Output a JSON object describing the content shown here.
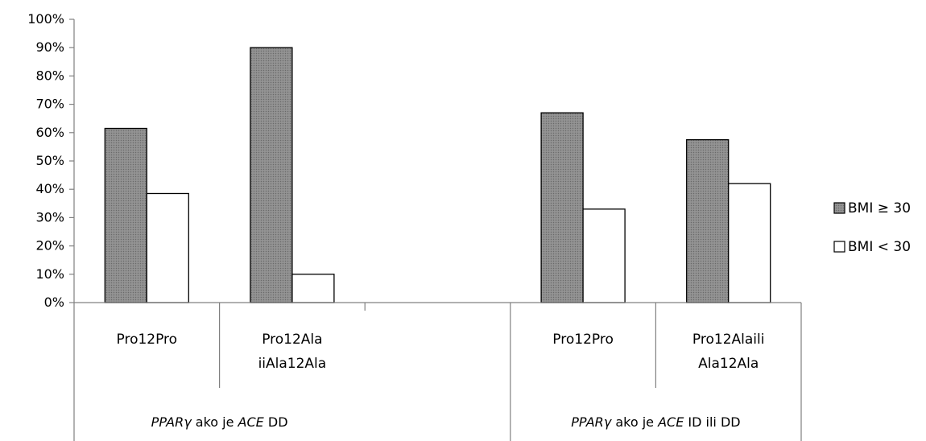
{
  "chart_data": {
    "type": "bar",
    "ylim": [
      0,
      100
    ],
    "y_ticks": [
      "0%",
      "10%",
      "20%",
      "30%",
      "40%",
      "50%",
      "60%",
      "70%",
      "80%",
      "90%",
      "100%"
    ],
    "categories": [
      {
        "lines": [
          "Pro12Pro"
        ],
        "values": [
          61.5,
          38.5
        ]
      },
      {
        "lines": [
          "Pro12Ala",
          "iiAla12Ala"
        ],
        "values": [
          90,
          10
        ]
      },
      {
        "lines": [],
        "values": [
          null,
          null
        ]
      },
      {
        "lines": [
          "Pro12Pro"
        ],
        "values": [
          67,
          33
        ]
      },
      {
        "lines": [
          "Pro12Alaili",
          "Ala12Ala"
        ],
        "values": [
          57.5,
          42
        ]
      }
    ],
    "groups": [
      {
        "italic1": "PPARγ",
        "mid": " ako je ",
        "italic2": "ACE",
        "end": " DD"
      },
      {
        "italic1": "PPARγ",
        "mid": " ako je ",
        "italic2": "ACE",
        "end": " ID ili DD"
      }
    ],
    "series": [
      {
        "name": "BMI ≥ 30",
        "color": "#7f7f7f",
        "stroke": "#000000"
      },
      {
        "name": "BMI < 30",
        "color": "#ffffff",
        "stroke": "#000000"
      }
    ],
    "legend_position": "right",
    "grid": false
  }
}
